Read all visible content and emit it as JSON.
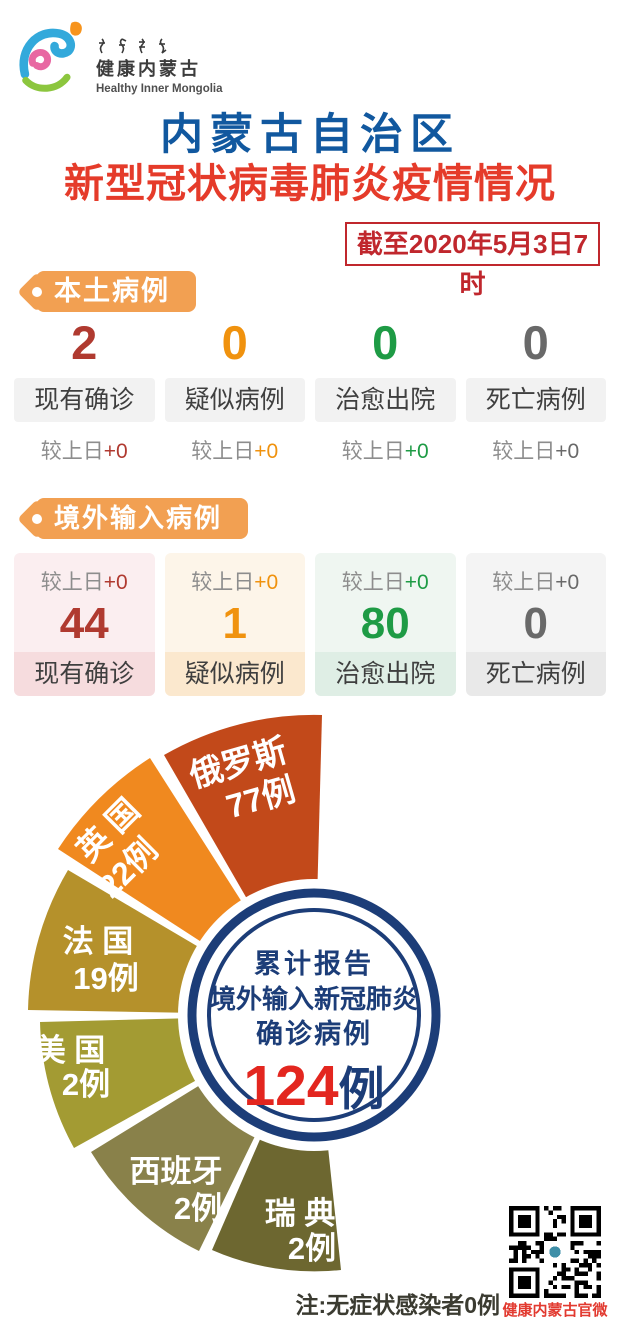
{
  "header": {
    "logo": {
      "name_cn": "健康内蒙古",
      "name_en": "Healthy Inner Mongolia"
    },
    "title_line1": "内蒙古自治区",
    "title_line2": "新型冠状病毒肺炎疫情情况",
    "as_of": "截至2020年5月3日7时"
  },
  "local_cases": {
    "tag": "本土病例",
    "stats": [
      {
        "value": "2",
        "label": "现有确诊",
        "delta_label": "较上日",
        "delta": "+0",
        "color": "#b03a30"
      },
      {
        "value": "0",
        "label": "疑似病例",
        "delta_label": "较上日",
        "delta": "+0",
        "color": "#f0920e"
      },
      {
        "value": "0",
        "label": "治愈出院",
        "delta_label": "较上日",
        "delta": "+0",
        "color": "#1e9b45"
      },
      {
        "value": "0",
        "label": "死亡病例",
        "delta_label": "较上日",
        "delta": "+0",
        "color": "#696969"
      }
    ]
  },
  "imported_cases": {
    "tag": "境外输入病例",
    "stats": [
      {
        "value": "44",
        "label": "现有确诊",
        "delta_label": "较上日",
        "delta": "+0",
        "color": "#b03a30"
      },
      {
        "value": "1",
        "label": "疑似病例",
        "delta_label": "较上日",
        "delta": "+0",
        "color": "#f0920e"
      },
      {
        "value": "80",
        "label": "治愈出院",
        "delta_label": "较上日",
        "delta": "+0",
        "color": "#1e9b45"
      },
      {
        "value": "0",
        "label": "死亡病例",
        "delta_label": "较上日",
        "delta": "+0",
        "color": "#696969"
      }
    ]
  },
  "chart_data": {
    "type": "pie",
    "style": "fan-semicircle",
    "categories": [
      "俄罗斯",
      "英国",
      "法国",
      "美国",
      "西班牙",
      "瑞典"
    ],
    "display_names": [
      "俄罗斯",
      "英 国",
      "法 国",
      "美 国",
      "西班牙",
      "瑞 典"
    ],
    "values": [
      77,
      22,
      19,
      2,
      2,
      2
    ],
    "value_labels": [
      "77例",
      "22例",
      "19例",
      "2例",
      "2例",
      "2例"
    ],
    "unit": "例",
    "total": 124,
    "colors": [
      "#c2491a",
      "#f0891f",
      "#b5912b",
      "#a39b33",
      "#89814a",
      "#6d6730"
    ],
    "ring_color": "#1c3d78",
    "total_color": "#e3261f",
    "legend_position": "on-slices",
    "center_text": {
      "line1": "累计报告",
      "line2": "境外输入新冠肺炎",
      "line3": "确诊病例",
      "total_value": "124",
      "total_unit": "例"
    },
    "note": "注:无症状感染者0例"
  },
  "footer": {
    "qr_caption": "健康内蒙古官微"
  }
}
